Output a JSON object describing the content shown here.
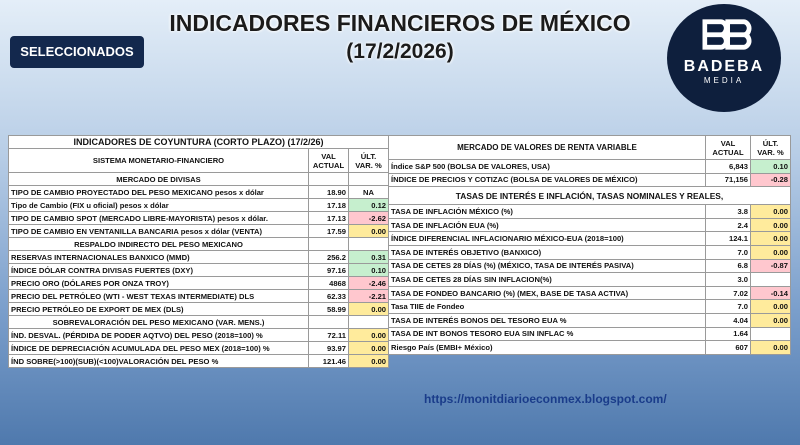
{
  "header": {
    "title": "INDICADORES FINANCIEROS DE MÉXICO",
    "date": "(17/2/2026)",
    "badge": "SELECCIONADOS",
    "logo": {
      "name": "BADEBA",
      "sub": "MEDIA"
    }
  },
  "left_table": {
    "title": "INDICADORES DE COYUNTURA (CORTO PLAZO) (17/2/26)",
    "columns": [
      "SISTEMA MONETARIO-FINANCIERO",
      "VAL ACTUAL",
      "ÚLT. VAR. %"
    ],
    "sections": [
      {
        "title": "MERCADO DE DIVISAS",
        "rows": [
          {
            "label": "TIPO DE CAMBIO PROYECTADO DEL PESO MEXICANO pesos x dólar",
            "value": "18.90",
            "change": "NA",
            "fill": null
          },
          {
            "label": "Tipo de Cambio (FIX u oficial) pesos x dólar",
            "value": "17.18",
            "change": "0.12",
            "fill": "#c6efce"
          },
          {
            "label": "TIPO DE CAMBIO SPOT (MERCADO LIBRE-MAYORISTA) pesos x dólar.",
            "value": "17.13",
            "change": "-2.62",
            "fill": "#ffc7ce"
          },
          {
            "label": "TIPO DE CAMBIO EN VENTANILLA BANCARIA pesos x dólar (VENTA)",
            "value": "17.59",
            "change": "0.00",
            "fill": "#ffeb9c"
          }
        ]
      },
      {
        "title": "RESPALDO INDIRECTO DEL PESO MEXICANO",
        "rows": [
          {
            "label": "RESERVAS INTERNACIONALES BANXICO (MMD)",
            "value": "256.2",
            "change": "0.31",
            "fill": "#c6efce"
          },
          {
            "label": "ÍNDICE DÓLAR CONTRA DIVISAS FUERTES (DXY)",
            "value": "97.16",
            "change": "0.10",
            "fill": "#c6efce"
          },
          {
            "label": "PRECIO ORO (DÓLARES POR ONZA TROY)",
            "value": "4868",
            "change": "-2.46",
            "fill": "#ffc7ce"
          },
          {
            "label": "PRECIO DEL PETRÓLEO (WTI - WEST TEXAS INTERMEDIATE) DLS",
            "value": "62.33",
            "change": "-2.21",
            "fill": "#ffc7ce"
          },
          {
            "label": "PRECIO PETRÓLEO DE EXPORT DE MEX (DLS)",
            "value": "58.99",
            "change": "0.00",
            "fill": "#ffeb9c"
          }
        ]
      },
      {
        "title": "SOBREVALORACIÓN DEL PESO MEXICANO (VAR. MENS.)",
        "rows": [
          {
            "label": "ÍND. DESVAL. (PÉRDIDA DE PODER AQTVO) DEL PESO (2018=100) %",
            "value": "72.11",
            "change": "0.00",
            "fill": "#ffeb9c"
          },
          {
            "label": "ÍNDICE DE DEPRECIACIÓN ACUMULADA DEL PESO MEX (2018=100) %",
            "value": "93.97",
            "change": "0.00",
            "fill": "#ffeb9c"
          },
          {
            "label": "ÍND SOBRE(>100)(SUB)(<100)VALORACIÓN DEL PESO  %",
            "value": "121.46",
            "change": "0.00",
            "fill": "#ffeb9c"
          }
        ]
      }
    ]
  },
  "right_table": {
    "columns": [
      "MERCADO DE VALORES DE RENTA VARIABLE",
      "VAL ACTUAL",
      "ÚLT. VAR. %"
    ],
    "sections": [
      {
        "title": null,
        "rows": [
          {
            "label": "Índice S&P 500 (BOLSA DE VALORES, USA)",
            "value": "6,843",
            "change": "0.10",
            "fill": "#c6efce"
          },
          {
            "label": "ÍNDICE DE PRECIOS Y COTIZAC (BOLSA DE VALORES DE MÉXICO)",
            "value": "71,156",
            "change": "-0.28",
            "fill": "#ffc7ce"
          }
        ]
      },
      {
        "title": "TASAS DE INTERÉS E INFLACIÓN, TASAS NOMINALES Y REALES,",
        "rows": [
          {
            "label": "TASA DE INFLACIÓN MÉXICO (%)",
            "value": "3.8",
            "change": "0.00",
            "fill": "#ffeb9c"
          },
          {
            "label": "TASA DE INFLACIÓN EUA (%)",
            "value": "2.4",
            "change": "0.00",
            "fill": "#ffeb9c"
          },
          {
            "label": "ÍNDICE DIFERENCIAL INFLACIONARIO MÉXICO-EUA (2018=100)",
            "value": "124.1",
            "change": "0.00",
            "fill": "#ffeb9c"
          },
          {
            "label": "TASA DE INTERÉS OBJETIVO (BANXICO)",
            "value": "7.0",
            "change": "0.00",
            "fill": "#ffeb9c"
          },
          {
            "label": "TASA DE CETES 28 DÍAS (%) (MÉXICO, TASA DE INTERÉS PASIVA)",
            "value": "6.8",
            "change": "-0.87",
            "fill": "#ffc7ce"
          },
          {
            "label": "TASA DE CETES 28 DÍAS SIN INFLACION(%)",
            "value": "3.0",
            "change": null,
            "fill": null
          },
          {
            "label": "TASA DE FONDEO BANCARIO (%) (MEX, BASE DE TASA ACTIVA)",
            "value": "7.02",
            "change": "-0.14",
            "fill": "#ffc7ce"
          },
          {
            "label": "Tasa TIIE de Fondeo",
            "value": "7.0",
            "change": "0.00",
            "fill": "#ffeb9c"
          },
          {
            "label": "TASA DE INTERÉS BONOS DEL TESORO EUA %",
            "value": "4.04",
            "change": "0.00",
            "fill": "#ffeb9c"
          },
          {
            "label": "TASA DE INT BONOS TESORO EUA SIN INFLAC %",
            "value": "1.64",
            "change": null,
            "fill": null
          },
          {
            "label": "Riesgo País (EMBI+ México)",
            "value": "607",
            "change": "0.00",
            "fill": "#ffeb9c"
          }
        ]
      }
    ]
  },
  "footer": {
    "url": "https://monitdiarioeconmex.blogspot.com/"
  }
}
